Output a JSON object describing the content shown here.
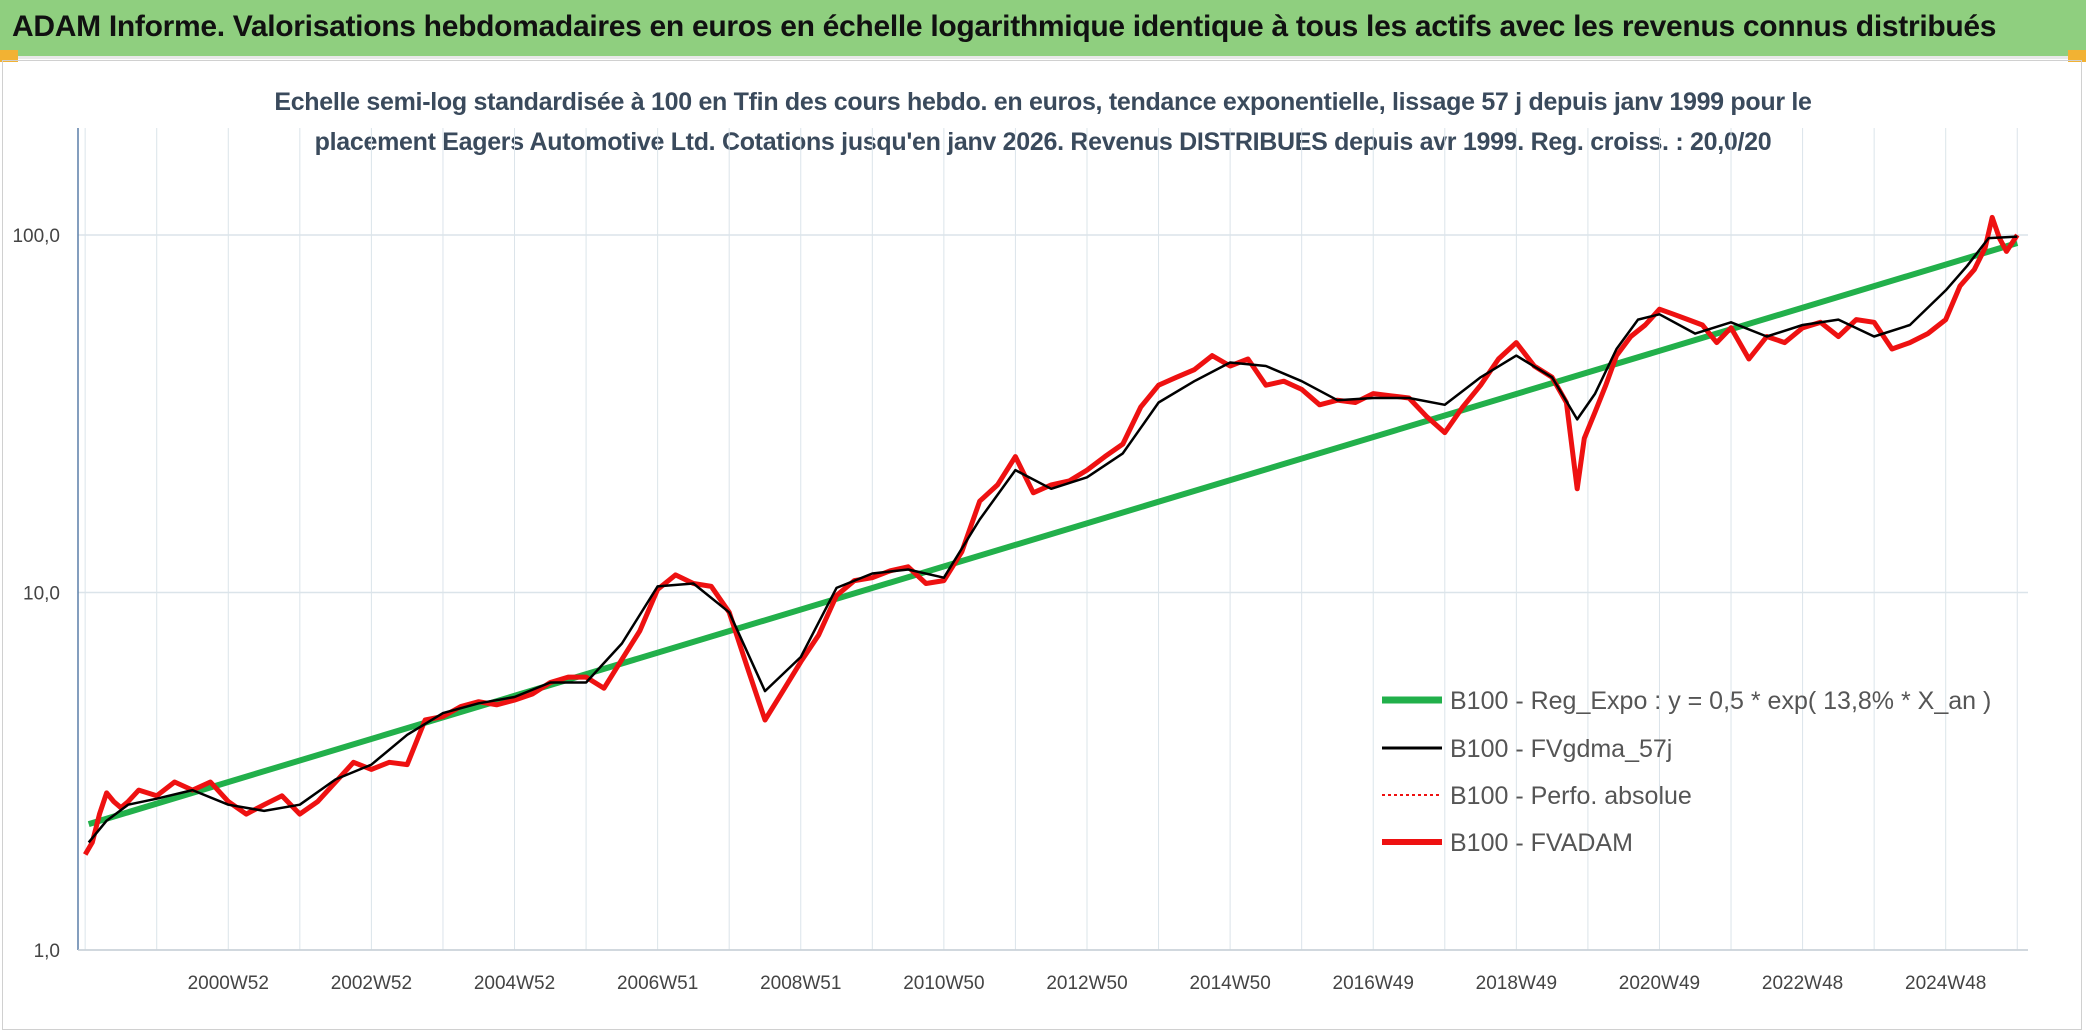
{
  "banner": {
    "title": "ADAM Informe. Valorisations hebdomadaires en euros en échelle logarithmique identique à tous les actifs avec les revenus connus distribués"
  },
  "colors": {
    "banner": "#8fcf7f",
    "corner": "#f2b233",
    "green": "#22b04b",
    "black": "#000000",
    "red": "#ee1111",
    "grid": "#dbe4ea"
  },
  "chart_data": {
    "type": "line",
    "title_line1": "Echelle semi-log standardisée à 100 en Tfin des cours hebdo. en euros, tendance exponentielle, lissage 57 j depuis janv 1999 pour le",
    "title_line2": "placement Eagers Automotive Ltd. Cotations jusqu'en janv 2026. Revenus DISTRIBUES depuis avr 1999. Reg. croiss. : 20,0/20",
    "y_scale": "log",
    "ylim": [
      1,
      100
    ],
    "y_ticks": [
      "1,0",
      "10,0",
      "100,0"
    ],
    "xlim": [
      1998.9,
      2026.15
    ],
    "x_tick_labels": [
      "2000W52",
      "2002W52",
      "2004W52",
      "2006W51",
      "2008W51",
      "2010W50",
      "2012W50",
      "2014W50",
      "2016W49",
      "2018W49",
      "2020W49",
      "2022W48",
      "2024W48"
    ],
    "grid": true,
    "legend_position": "bottom-right",
    "series": [
      {
        "name": "B100 - Reg_Expo : y = 0,5 * exp( 13,8% *  X_an )",
        "color": "#22b04b",
        "style": "solid-thick",
        "x": [
          1999.05,
          2026.0
        ],
        "y": [
          2.25,
          95.0
        ]
      },
      {
        "name": "B100 - FVgdma_57j",
        "color": "#000000",
        "style": "solid",
        "x": [
          1999.05,
          1999.3,
          1999.6,
          2000.0,
          2000.5,
          2001.0,
          2001.5,
          2002.0,
          2002.5,
          2003.0,
          2003.5,
          2004.0,
          2004.5,
          2005.0,
          2005.5,
          2006.0,
          2006.5,
          2007.0,
          2007.5,
          2008.0,
          2008.5,
          2009.0,
          2009.5,
          2010.0,
          2010.5,
          2011.0,
          2011.5,
          2012.0,
          2012.5,
          2013.0,
          2013.5,
          2014.0,
          2014.5,
          2015.0,
          2015.5,
          2016.0,
          2016.5,
          2017.0,
          2017.5,
          2018.0,
          2018.5,
          2019.0,
          2019.5,
          2019.85,
          2020.1,
          2020.4,
          2020.7,
          2021.0,
          2021.5,
          2022.0,
          2022.5,
          2023.0,
          2023.5,
          2024.0,
          2024.5,
          2025.0,
          2025.3,
          2025.6,
          2026.0
        ],
        "y": [
          2.0,
          2.3,
          2.55,
          2.65,
          2.8,
          2.55,
          2.45,
          2.55,
          3.0,
          3.3,
          4.0,
          4.6,
          4.9,
          5.1,
          5.6,
          5.6,
          7.2,
          10.4,
          10.6,
          8.8,
          5.3,
          6.6,
          10.3,
          11.3,
          11.6,
          11.0,
          16.0,
          22.0,
          19.5,
          21.0,
          24.5,
          34.0,
          39.0,
          44.0,
          43.0,
          39.0,
          34.5,
          35.0,
          35.0,
          33.5,
          40.0,
          46.0,
          40.0,
          30.5,
          36.0,
          48.0,
          58.0,
          60.0,
          53.0,
          57.0,
          52.0,
          56.0,
          58.0,
          52.0,
          56.0,
          70.0,
          82.0,
          98.0,
          99.0
        ]
      },
      {
        "name": "B100 - Perfo. absolue",
        "color": "#ee1111",
        "style": "dotted"
      },
      {
        "name": "B100 - FVADAM",
        "color": "#ee1111",
        "style": "solid-thick",
        "x": [
          1999.0,
          1999.1,
          1999.2,
          1999.3,
          1999.4,
          1999.5,
          1999.6,
          1999.75,
          2000.0,
          2000.25,
          2000.5,
          2000.75,
          2001.0,
          2001.25,
          2001.5,
          2001.75,
          2002.0,
          2002.25,
          2002.5,
          2002.75,
          2003.0,
          2003.25,
          2003.5,
          2003.75,
          2004.0,
          2004.25,
          2004.5,
          2004.75,
          2005.0,
          2005.25,
          2005.5,
          2005.75,
          2006.0,
          2006.25,
          2006.5,
          2006.75,
          2007.0,
          2007.25,
          2007.5,
          2007.75,
          2008.0,
          2008.25,
          2008.5,
          2008.75,
          2009.0,
          2009.25,
          2009.5,
          2009.75,
          2010.0,
          2010.25,
          2010.5,
          2010.75,
          2011.0,
          2011.25,
          2011.5,
          2011.75,
          2012.0,
          2012.25,
          2012.5,
          2012.75,
          2013.0,
          2013.25,
          2013.5,
          2013.75,
          2014.0,
          2014.25,
          2014.5,
          2014.75,
          2015.0,
          2015.25,
          2015.5,
          2015.75,
          2016.0,
          2016.25,
          2016.5,
          2016.75,
          2017.0,
          2017.25,
          2017.5,
          2017.75,
          2018.0,
          2018.25,
          2018.5,
          2018.75,
          2019.0,
          2019.25,
          2019.5,
          2019.7,
          2019.85,
          2019.95,
          2020.1,
          2020.25,
          2020.4,
          2020.6,
          2020.8,
          2021.0,
          2021.2,
          2021.4,
          2021.6,
          2021.8,
          2022.0,
          2022.25,
          2022.5,
          2022.75,
          2023.0,
          2023.25,
          2023.5,
          2023.75,
          2024.0,
          2024.25,
          2024.5,
          2024.75,
          2025.0,
          2025.2,
          2025.4,
          2025.55,
          2025.65,
          2025.75,
          2025.85,
          2026.0
        ],
        "y": [
          1.85,
          2.0,
          2.4,
          2.75,
          2.6,
          2.5,
          2.6,
          2.8,
          2.7,
          2.95,
          2.8,
          2.95,
          2.6,
          2.4,
          2.55,
          2.7,
          2.4,
          2.6,
          2.95,
          3.35,
          3.2,
          3.35,
          3.3,
          4.4,
          4.5,
          4.8,
          4.95,
          4.85,
          5.0,
          5.2,
          5.6,
          5.8,
          5.8,
          5.4,
          6.5,
          7.8,
          10.2,
          11.2,
          10.6,
          10.4,
          8.8,
          6.2,
          4.4,
          5.3,
          6.4,
          7.6,
          9.8,
          10.8,
          11.0,
          11.5,
          11.8,
          10.6,
          10.8,
          13.0,
          18.0,
          20.0,
          24.0,
          19.0,
          20.0,
          20.5,
          22.0,
          24.0,
          26.0,
          33.0,
          38.0,
          40.0,
          42.0,
          46.0,
          43.0,
          45.0,
          38.0,
          39.0,
          37.0,
          33.5,
          34.5,
          34.0,
          36.0,
          35.5,
          35.0,
          31.0,
          28.0,
          33.0,
          38.0,
          45.0,
          50.0,
          43.0,
          40.0,
          34.0,
          19.5,
          27.0,
          32.0,
          38.0,
          46.0,
          52.0,
          56.0,
          62.0,
          60.0,
          58.0,
          56.0,
          50.0,
          55.0,
          45.0,
          52.0,
          50.0,
          55.0,
          57.0,
          52.0,
          58.0,
          57.0,
          48.0,
          50.0,
          53.0,
          58.0,
          72.0,
          80.0,
          92.0,
          112.0,
          98.0,
          90.0,
          100.0
        ]
      }
    ]
  }
}
